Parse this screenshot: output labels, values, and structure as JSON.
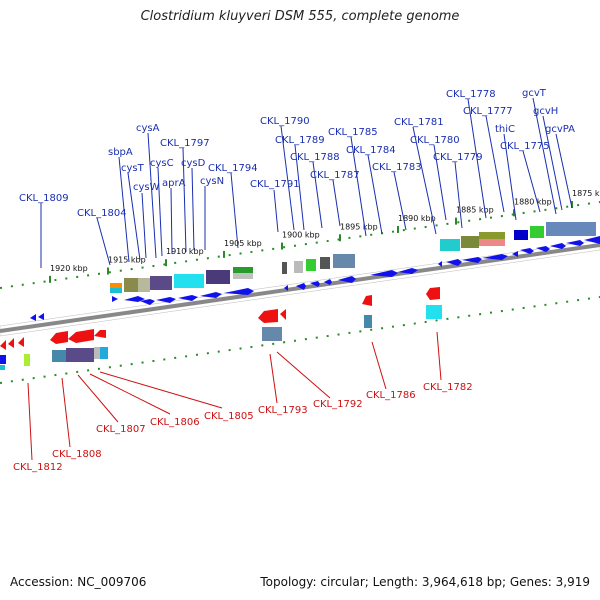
{
  "title": "Clostridium kluyveri DSM 555, complete genome",
  "accession": "Accession: NC_009706",
  "topology": "Topology: circular; Length: 3,964,618 bp; Genes: 3,919",
  "kbp_ticks": [
    "1920 kbp",
    "1915 kbp",
    "1910 kbp",
    "1905 kbp",
    "1900 kbp",
    "1895 kbp",
    "1890 kbp",
    "1885 kbp",
    "1880 kbp",
    "1875 kbp"
  ],
  "top_genes": [
    "CKL_1809",
    "CKL_1804",
    "sbpA",
    "cysT",
    "cysW",
    "cysA",
    "cysC",
    "aprA",
    "CKL_1797",
    "cysD",
    "cysN",
    "CKL_1794",
    "CKL_1791",
    "CKL_1790",
    "CKL_1789",
    "CKL_1788",
    "CKL_1787",
    "CKL_1785",
    "CKL_1784",
    "CKL_1783",
    "CKL_1781",
    "CKL_1780",
    "CKL_1779",
    "CKL_1778",
    "CKL_1777",
    "thiC",
    "CKL_1775",
    "gcvT",
    "gcvH",
    "gcvPA"
  ],
  "bottom_genes": [
    "CKL_1812",
    "CKL_1808",
    "CKL_1807",
    "CKL_1806",
    "CKL_1805",
    "CKL_1793",
    "CKL_1792",
    "CKL_1786",
    "CKL_1782"
  ],
  "colors": {
    "forward": "#1111ee",
    "reverse": "#ee1111",
    "label_top": "#1a2fb0",
    "label_bottom": "#cc1111",
    "backbone": "#888888",
    "tick": "#2a8a2a"
  }
}
